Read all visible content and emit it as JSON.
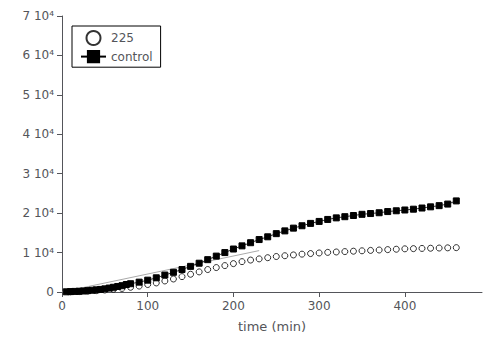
{
  "chart_data": {
    "type": "line",
    "xlabel": "time (min)",
    "xlim": [
      0,
      490
    ],
    "ylim": [
      0,
      70000
    ],
    "xticks": [
      0,
      100,
      200,
      300,
      400
    ],
    "yticks": [
      0,
      {
        "value": 10000,
        "label": "1 10⁴"
      },
      {
        "value": 20000,
        "label": "2 10⁴"
      },
      {
        "value": 30000,
        "label": "3 10⁴"
      },
      {
        "value": 40000,
        "label": "4 10⁴"
      },
      {
        "value": 50000,
        "label": "5 10⁴"
      },
      {
        "value": 60000,
        "label": "6 10⁴"
      },
      {
        "value": 70000,
        "label": "7 10⁴"
      }
    ],
    "grid": false,
    "legend": "upper left",
    "background_color": "#ffffff",
    "series": [
      {
        "type": "line",
        "color": "#aaaaaa",
        "x": [
          0,
          230
        ],
        "values": [
          0,
          10500
        ]
      },
      {
        "name": "225",
        "type": "scatter",
        "marker": "open_circle",
        "color": "#000000",
        "x": [
          10,
          20,
          30,
          40,
          50,
          60,
          70,
          80,
          90,
          100,
          110,
          120,
          130,
          140,
          150,
          160,
          170,
          180,
          190,
          200,
          210,
          220,
          230,
          240,
          250,
          260,
          270,
          280,
          290,
          300,
          310,
          320,
          330,
          340,
          350,
          360,
          370,
          380,
          390,
          400,
          410,
          420,
          430,
          440,
          450,
          460
        ],
        "values": [
          50,
          100,
          200,
          350,
          500,
          700,
          900,
          1200,
          1500,
          1900,
          2300,
          2800,
          3300,
          3900,
          4500,
          5100,
          5700,
          6200,
          6700,
          7200,
          7700,
          8100,
          8400,
          8700,
          9000,
          9200,
          9400,
          9600,
          9750,
          9900,
          10050,
          10150,
          10250,
          10350,
          10450,
          10550,
          10650,
          10750,
          10850,
          10950,
          11000,
          11050,
          11100,
          11150,
          11200,
          11250
        ]
      },
      {
        "name": "control",
        "type": "line",
        "marker": "square",
        "color": "#000000",
        "x": [
          5,
          10,
          15,
          20,
          25,
          30,
          35,
          40,
          45,
          50,
          55,
          60,
          65,
          70,
          75,
          80,
          90,
          100,
          110,
          120,
          130,
          140,
          150,
          160,
          170,
          180,
          190,
          200,
          210,
          220,
          230,
          240,
          250,
          260,
          270,
          280,
          290,
          300,
          310,
          320,
          330,
          340,
          350,
          360,
          370,
          380,
          390,
          400,
          410,
          420,
          430,
          440,
          450,
          460
        ],
        "values": [
          50,
          100,
          150,
          200,
          250,
          350,
          450,
          550,
          650,
          800,
          1000,
          1200,
          1400,
          1600,
          1900,
          2100,
          2500,
          3000,
          3600,
          4300,
          5000,
          5700,
          6500,
          7300,
          8200,
          9100,
          10000,
          10900,
          11700,
          12500,
          13300,
          14000,
          14800,
          15500,
          16200,
          16800,
          17400,
          17900,
          18400,
          18800,
          19100,
          19400,
          19700,
          19900,
          20100,
          20400,
          20600,
          20800,
          21000,
          21300,
          21600,
          21900,
          22300,
          23100
        ]
      }
    ]
  }
}
